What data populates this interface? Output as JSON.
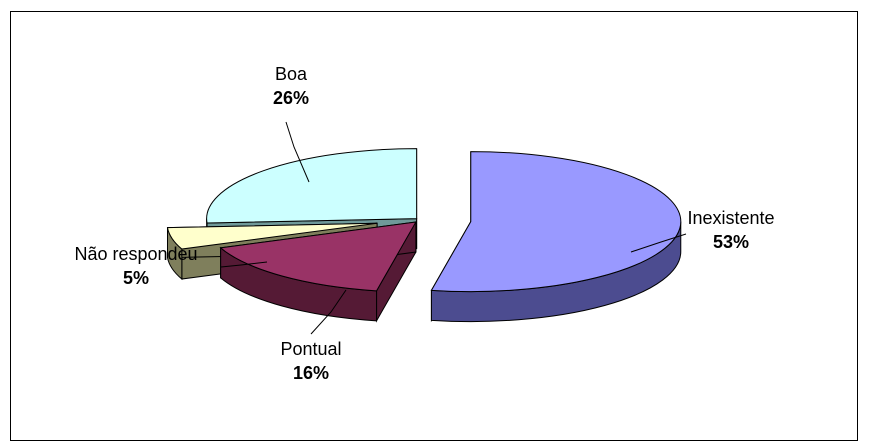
{
  "chart_data": {
    "type": "pie",
    "style": "3d-exploded",
    "categories": [
      "Inexistente",
      "Pontual",
      "Não respondeu",
      "Boa"
    ],
    "values": [
      53,
      16,
      5,
      26
    ],
    "value_labels": [
      "53%",
      "16%",
      "5%",
      "26%"
    ],
    "colors": {
      "Inexistente": {
        "top": "#9999ff",
        "side": "#4c4c90"
      },
      "Pontual": {
        "top": "#993366",
        "side": "#551a35"
      },
      "Não respondeu": {
        "top": "#ffffcc",
        "side": "#7f7f5c"
      },
      "Boa": {
        "top": "#ccffff",
        "side": "#6f9999"
      }
    },
    "legend": "none",
    "grid": false
  }
}
